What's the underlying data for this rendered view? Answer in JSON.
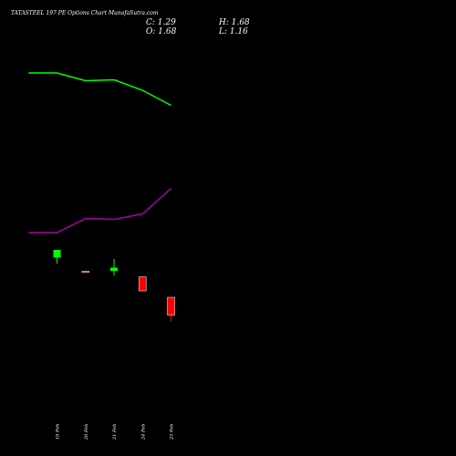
{
  "header": {
    "title": "TATASTEEL 197 PE Options  Chart MunafaSutra.com",
    "close_label": "C: 1.29",
    "high_label": "H: 1.68",
    "open_label": "O: 1.68",
    "low_label": "L: 1.16"
  },
  "chart_data": {
    "type": "candlestick",
    "title": "TATASTEEL 197 PE Options  Chart MunafaSutra.com",
    "xlabel": "",
    "ylabel": "",
    "grid": false,
    "legend": "none",
    "colors": {
      "background": "#000000",
      "up": "#00ff00",
      "down": "#ff0000",
      "upper_band": "#00ff00",
      "lower_band": "#aa00aa"
    },
    "categories": [
      "19 Feb",
      "20 Feb",
      "21 Feb",
      "24 Feb",
      "25 Feb"
    ],
    "tick_labels": [
      "19 Feb",
      "20 Feb",
      "21 Feb",
      "24 Feb",
      "25 Feb"
    ],
    "candles": [
      {
        "x": "19 Feb",
        "open": 2.55,
        "close": 2.72,
        "high": 2.72,
        "low": 2.42
      },
      {
        "x": "20 Feb",
        "open": 2.25,
        "close": 2.24,
        "high": 2.27,
        "low": 2.22
      },
      {
        "x": "21 Feb",
        "open": 2.26,
        "close": 2.33,
        "high": 2.52,
        "low": 2.16
      },
      {
        "x": "24 Feb",
        "open": 2.13,
        "close": 1.82,
        "high": 2.13,
        "low": 1.82
      },
      {
        "x": "25 Feb",
        "open": 1.68,
        "close": 1.29,
        "high": 1.68,
        "low": 1.16
      }
    ],
    "bands": {
      "x": [
        -1,
        0,
        1,
        2,
        3,
        4
      ],
      "upper": [
        6.6,
        6.6,
        6.43,
        6.45,
        6.22,
        5.89
      ],
      "lower": [
        3.1,
        3.1,
        3.41,
        3.39,
        3.51,
        4.07
      ]
    },
    "ylim": [
      -0.2,
      7.4
    ]
  }
}
